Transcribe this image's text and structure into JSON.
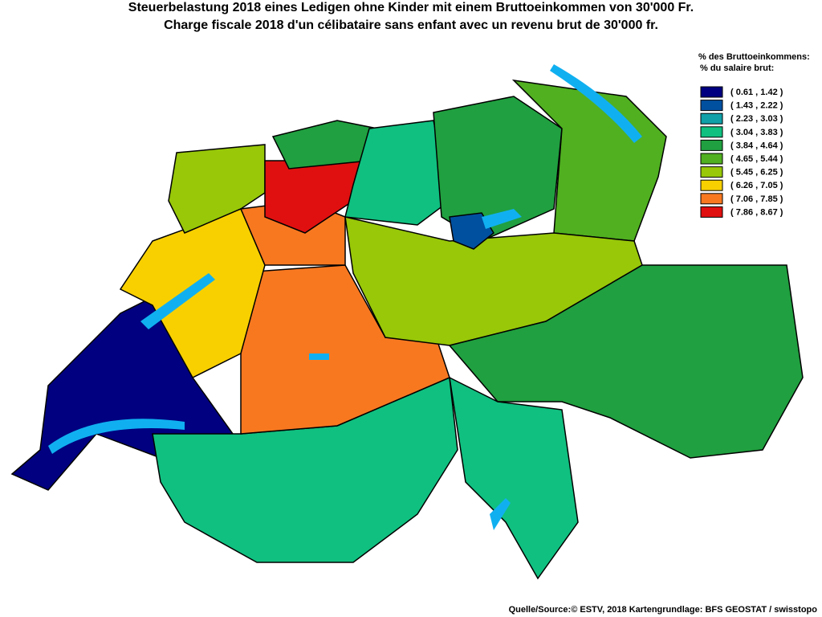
{
  "header": {
    "title_de": "Steuerbelastung 2018 eines Ledigen ohne Kinder mit einem Bruttoeinkommen von 30'000 Fr.",
    "title_fr": "Charge fiscale 2018 d'un célibataire sans enfant avec un revenu brut de 30'000 fr."
  },
  "legend": {
    "title_de": "% des Bruttoeinkommens:",
    "title_fr": "% du salaire brut:",
    "items": [
      {
        "label": "( 0.61 , 1.42 )",
        "color": "#000080"
      },
      {
        "label": "( 1.43 , 2.22 )",
        "color": "#0050a0"
      },
      {
        "label": "( 2.23 , 3.03 )",
        "color": "#10a0a8"
      },
      {
        "label": "( 3.04 , 3.83 )",
        "color": "#10c080"
      },
      {
        "label": "( 3.84 , 4.64 )",
        "color": "#20a040"
      },
      {
        "label": "( 4.65 , 5.44 )",
        "color": "#50b020"
      },
      {
        "label": "( 5.45 , 6.25 )",
        "color": "#98c808"
      },
      {
        "label": "( 6.26 , 7.05 )",
        "color": "#f8d000"
      },
      {
        "label": "( 7.06 , 7.85 )",
        "color": "#f87820"
      },
      {
        "label": "( 7.86 , 8.67 )",
        "color": "#e01010"
      }
    ]
  },
  "footer": {
    "source": "Quelle/Source:© ESTV, 2018 Kartengrundlage: BFS GEOSTAT / swisstopo"
  }
}
